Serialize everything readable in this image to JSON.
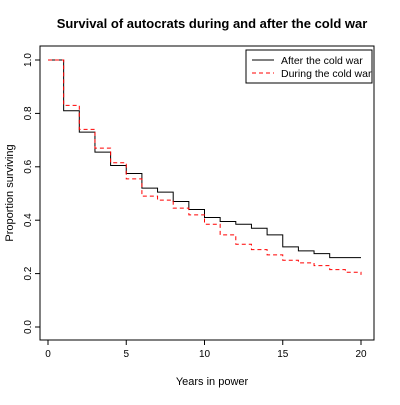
{
  "chart_data": {
    "type": "line",
    "title": "Survival of autocrats during and after the cold war",
    "xlabel": "Years in power",
    "ylabel": "Proportion surviving",
    "xlim": [
      0,
      20
    ],
    "ylim": [
      0,
      1
    ],
    "x_ticks": [
      "0",
      "5",
      "10",
      "15",
      "20"
    ],
    "y_ticks": [
      "0.0",
      "0.2",
      "0.4",
      "0.6",
      "0.8",
      "1.0"
    ],
    "legend_position": "top-right",
    "step": true,
    "series": [
      {
        "name": "After the cold war",
        "color": "#000000",
        "style": "solid",
        "x": [
          0,
          1,
          2,
          3,
          4,
          5,
          6,
          7,
          8,
          9,
          10,
          11,
          12,
          13,
          14,
          15,
          16,
          17,
          18,
          19,
          20
        ],
        "y": [
          1.0,
          0.81,
          0.73,
          0.655,
          0.605,
          0.575,
          0.52,
          0.505,
          0.47,
          0.44,
          0.41,
          0.395,
          0.385,
          0.37,
          0.345,
          0.3,
          0.285,
          0.275,
          0.26,
          0.26,
          0.26
        ]
      },
      {
        "name": "During the cold war",
        "color": "#ff0000",
        "style": "dashed",
        "x": [
          0,
          1,
          2,
          3,
          4,
          5,
          6,
          7,
          8,
          9,
          10,
          11,
          12,
          13,
          14,
          15,
          16,
          17,
          18,
          19,
          20
        ],
        "y": [
          1.0,
          0.83,
          0.74,
          0.67,
          0.615,
          0.555,
          0.49,
          0.475,
          0.445,
          0.42,
          0.385,
          0.345,
          0.31,
          0.29,
          0.27,
          0.25,
          0.24,
          0.23,
          0.215,
          0.205,
          0.195
        ]
      }
    ]
  }
}
